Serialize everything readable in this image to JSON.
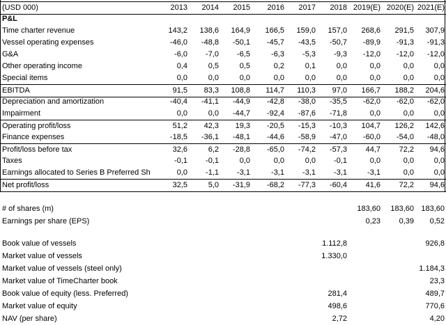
{
  "header": {
    "unit": "(USD 000)",
    "years": [
      "2013",
      "2014",
      "2015",
      "2016",
      "2017",
      "2018",
      "2019(E)",
      "2020(E)",
      "2021(E)"
    ]
  },
  "section_title": "P&L",
  "pl_rows": [
    {
      "label": "Time charter revenue",
      "values": [
        "143,2",
        "138,6",
        "164,9",
        "166,5",
        "159,0",
        "157,0",
        "268,6",
        "291,5",
        "307,9"
      ]
    },
    {
      "label": "Vessel operating expenses",
      "values": [
        "-46,0",
        "-48,8",
        "-50,1",
        "-45,7",
        "-43,5",
        "-50,7",
        "-89,9",
        "-91,3",
        "-91,3"
      ]
    },
    {
      "label": "G&A",
      "values": [
        "-6,0",
        "-7,0",
        "-6,5",
        "-6,3",
        "-5,3",
        "-9,3",
        "-12,0",
        "-12,0",
        "-12,0"
      ]
    },
    {
      "label": "Other operating income",
      "values": [
        "0,4",
        "0,5",
        "0,5",
        "0,2",
        "0,1",
        "0,0",
        "0,0",
        "0,0",
        "0,0"
      ]
    },
    {
      "label": "Special items",
      "values": [
        "0,0",
        "0,0",
        "0,0",
        "0,0",
        "0,0",
        "0,0",
        "0,0",
        "0,0",
        "0,0"
      ]
    },
    {
      "label": "EBITDA",
      "values": [
        "91,5",
        "83,3",
        "108,8",
        "114,7",
        "110,3",
        "97,0",
        "166,7",
        "188,2",
        "204,6"
      ]
    },
    {
      "label": "Depreciation and amortization",
      "values": [
        "-40,4",
        "-41,1",
        "-44,9",
        "-42,8",
        "-38,0",
        "-35,5",
        "-62,0",
        "-62,0",
        "-62,0"
      ]
    },
    {
      "label": "Impairment",
      "values": [
        "0,0",
        "0,0",
        "-44,7",
        "-92,4",
        "-87,6",
        "-71,8",
        "0,0",
        "0,0",
        "0,0"
      ]
    },
    {
      "label": "Operating profit/loss",
      "values": [
        "51,2",
        "42,3",
        "19,3",
        "-20,5",
        "-15,3",
        "-10,3",
        "104,7",
        "126,2",
        "142,6"
      ]
    },
    {
      "label": "Finance expenses",
      "values": [
        "-18,5",
        "-36,1",
        "-48,1",
        "-44,6",
        "-58,9",
        "-47,0",
        "-60,0",
        "-54,0",
        "-48,0"
      ]
    },
    {
      "label": "Profit/loss before tax",
      "values": [
        "32,6",
        "6,2",
        "-28,8",
        "-65,0",
        "-74,2",
        "-57,3",
        "44,7",
        "72,2",
        "94,6"
      ]
    },
    {
      "label": "Taxes",
      "values": [
        "-0,1",
        "-0,1",
        "0,0",
        "0,0",
        "0,0",
        "-0,1",
        "0,0",
        "0,0",
        "0,0"
      ]
    },
    {
      "label": "Earnings allocated to Series B Preferred Sh",
      "values": [
        "0,0",
        "-1,1",
        "-3,1",
        "-3,1",
        "-3,1",
        "-3,1",
        "-3,1",
        "0,0",
        "0,0"
      ]
    },
    {
      "label": "Net profit/loss",
      "values": [
        "32,5",
        "5,0",
        "-31,9",
        "-68,2",
        "-77,3",
        "-60,4",
        "41,6",
        "72,2",
        "94,6"
      ]
    }
  ],
  "shares": [
    {
      "label": "# of shares (m)",
      "values": [
        "",
        "",
        "",
        "",
        "",
        "",
        "183,60",
        "183,60",
        "183,60"
      ]
    },
    {
      "label": "Earnings per share (EPS)",
      "values": [
        "",
        "",
        "",
        "",
        "",
        "",
        "0,23",
        "0,39",
        "0,52"
      ]
    }
  ],
  "valuation": [
    {
      "label": "Book value of vessels",
      "values": [
        "",
        "",
        "",
        "",
        "",
        "1.112,8",
        "",
        "",
        "926,8"
      ]
    },
    {
      "label": "Market value of vessels",
      "values": [
        "",
        "",
        "",
        "",
        "",
        "1.330,0",
        "",
        "",
        ""
      ]
    },
    {
      "label": "Market value of vessels (steel only)",
      "values": [
        "",
        "",
        "",
        "",
        "",
        "",
        "",
        "",
        "1.184,3"
      ]
    },
    {
      "label": "Market value of TimeCharter book",
      "values": [
        "",
        "",
        "",
        "",
        "",
        "",
        "",
        "",
        "23,3"
      ]
    },
    {
      "label": "Book value of equity (less. Preferred)",
      "values": [
        "",
        "",
        "",
        "",
        "",
        "281,4",
        "",
        "",
        "489,7"
      ]
    },
    {
      "label": "Market value of equity",
      "values": [
        "",
        "",
        "",
        "",
        "",
        "498,6",
        "",
        "",
        "770,6"
      ]
    },
    {
      "label": "NAV (per share)",
      "values": [
        "",
        "",
        "",
        "",
        "",
        "2,72",
        "",
        "",
        "4,20"
      ]
    }
  ]
}
